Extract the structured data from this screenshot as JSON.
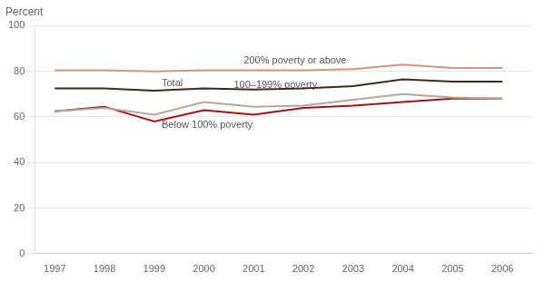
{
  "chart_data": {
    "type": "line",
    "ylabel": "Percent",
    "x": [
      1997,
      1998,
      1999,
      2000,
      2001,
      2002,
      2003,
      2004,
      2005,
      2006
    ],
    "series": [
      {
        "name": "200% poverty or above",
        "color": "#d4967a",
        "values": [
          80.5,
          80.5,
          80.0,
          80.5,
          80.5,
          80.5,
          81.0,
          83.0,
          81.5,
          81.5
        ]
      },
      {
        "name": "Total",
        "color": "#3d2b1f",
        "values": [
          72.5,
          72.5,
          71.5,
          72.5,
          72.0,
          72.5,
          73.5,
          76.5,
          75.5,
          75.5
        ]
      },
      {
        "name": "100–199% poverty",
        "color": "#b5a898",
        "values": [
          62.5,
          64.0,
          61.0,
          66.5,
          64.5,
          65.0,
          67.5,
          70.0,
          68.5,
          68.0
        ]
      },
      {
        "name": "Below 100% poverty",
        "color": "#a31515",
        "values": [
          62.5,
          64.5,
          58.0,
          63.0,
          61.0,
          64.0,
          65.0,
          66.5,
          68.0,
          68.0
        ]
      }
    ],
    "annotations": [
      {
        "text": "200% poverty or above",
        "x": 2000.8,
        "y": 84.5
      },
      {
        "text": "Total",
        "x": 1999.15,
        "y": 74.8
      },
      {
        "text": "100–199% poverty",
        "x": 2000.6,
        "y": 73.8
      },
      {
        "text": "Below 100% poverty",
        "x": 1999.15,
        "y": 56.5
      }
    ],
    "xlim": [
      1996.6,
      2006.6
    ],
    "xticks": [
      1997,
      1998,
      1999,
      2000,
      2001,
      2002,
      2003,
      2004,
      2005,
      2006
    ],
    "ylim": [
      0,
      100
    ],
    "yticks": [
      0,
      20,
      40,
      60,
      80,
      100
    ],
    "grid": "y"
  }
}
